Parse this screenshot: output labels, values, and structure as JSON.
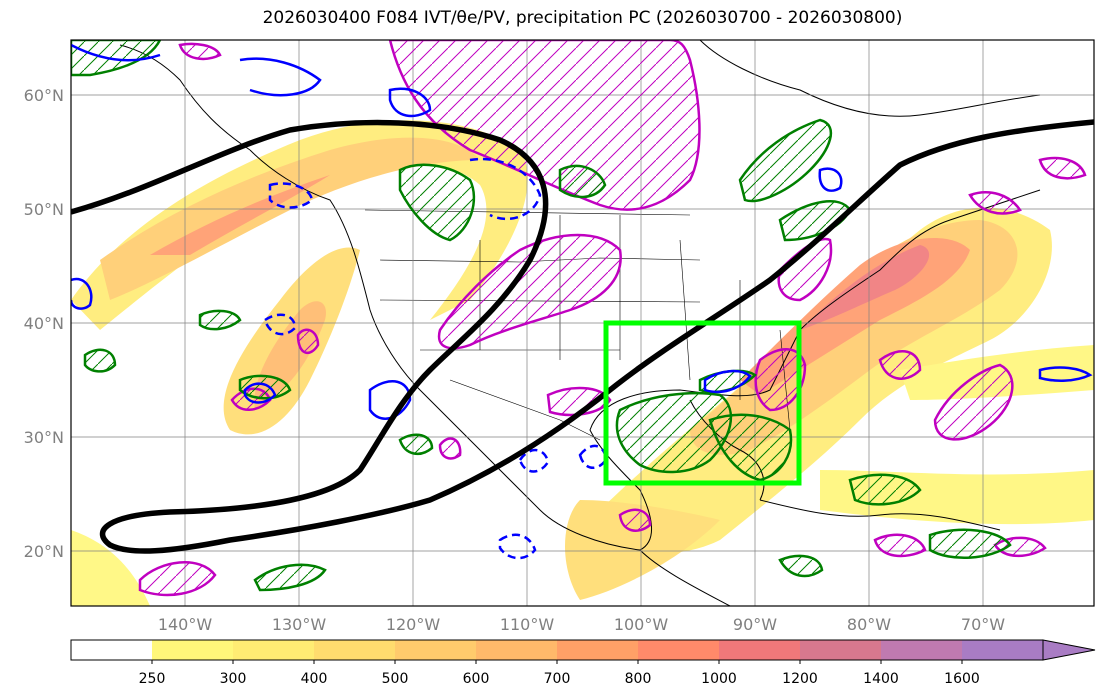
{
  "title": "2026030400 F084 IVT/θe/PV, precipitation PC (2026030700 - 2026030800)",
  "map": {
    "lat_labels": [
      "60°N",
      "50°N",
      "40°N",
      "30°N",
      "20°N"
    ],
    "lon_labels": [
      "140°W",
      "130°W",
      "120°W",
      "110°W",
      "100°W",
      "90°W",
      "80°W",
      "70°W"
    ],
    "highlight_box": {
      "lon_min": -103,
      "lon_max": -86,
      "lat_min": 26,
      "lat_max": 40,
      "color": "#00ff00"
    }
  },
  "colorbar": {
    "levels": [
      "250",
      "300",
      "400",
      "500",
      "600",
      "700",
      "800",
      "1000",
      "1200",
      "1400",
      "1600"
    ],
    "colors": [
      "#ffffff",
      "#fff77a",
      "#ffec73",
      "#ffdc6e",
      "#ffcb6c",
      "#ffb96a",
      "#ffa067",
      "#ff8a6a",
      "#f0787a",
      "#d8788e",
      "#c07ab0",
      "#a97cc4"
    ]
  },
  "colors": {
    "pv_positive": "#0000ff",
    "theta_e": "#008000",
    "precip_pc": "#c000c0",
    "jet": "#000000"
  }
}
